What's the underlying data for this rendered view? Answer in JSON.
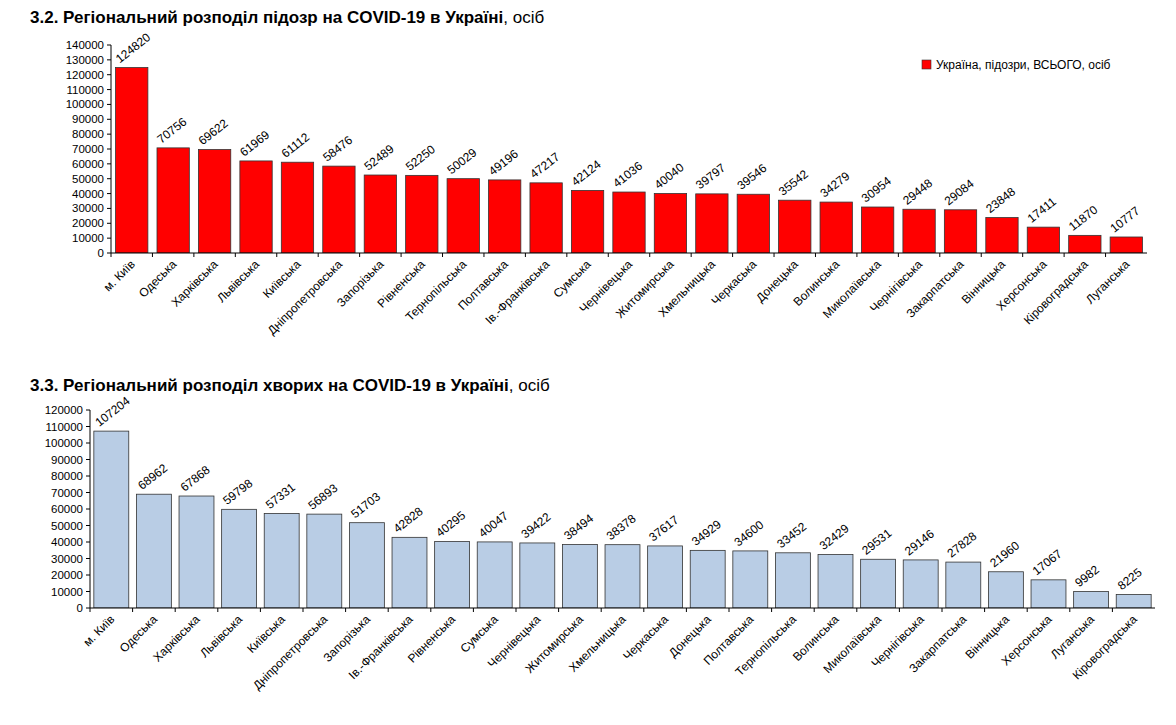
{
  "chart_data": [
    {
      "type": "bar",
      "title": "3.2.  Регіональний розподіл підозр на COVID-19 в Україні, осіб",
      "categories": [
        "м. Київ",
        "Одеська",
        "Харківська",
        "Львівська",
        "Київська",
        "Дніпропетровська",
        "Запорізька",
        "Рівненська",
        "Тернопільська",
        "Полтавська",
        "Ів.-Франківська",
        "Сумська",
        "Чернівецька",
        "Житомирська",
        "Хмельницька",
        "Черкаська",
        "Донецька",
        "Волинська",
        "Миколаївська",
        "Чернігівська",
        "Закарпатська",
        "Вінницька",
        "Херсонська",
        "Кіровоградська",
        "Луганська"
      ],
      "series": [
        {
          "name": "Україна, підозри, ВСЬОГО, осіб",
          "color": "#ff0000",
          "values": [
            124820,
            70756,
            69622,
            61969,
            61112,
            58476,
            52489,
            52250,
            50029,
            49196,
            47217,
            42124,
            41036,
            40040,
            39797,
            39546,
            35542,
            34279,
            30954,
            29448,
            29084,
            23848,
            17411,
            11870,
            10777
          ]
        }
      ],
      "ylim": [
        0,
        140000
      ],
      "yticks": [
        0,
        10000,
        20000,
        30000,
        40000,
        50000,
        60000,
        70000,
        80000,
        90000,
        100000,
        110000,
        120000,
        130000,
        140000
      ],
      "grid": false,
      "legend": "top-right",
      "data_labels": true
    },
    {
      "type": "bar",
      "title": "3.3.  Регіональний розподіл хворих на COVID-19 в Україні, осіб",
      "categories": [
        "м. Київ",
        "Одеська",
        "Харківська",
        "Львівська",
        "Київська",
        "Дніпропетровська",
        "Запорізька",
        "Ів.-Франківська",
        "Рівненська",
        "Сумська",
        "Чернівецька",
        "Житомирська",
        "Хмельницька",
        "Черкаська",
        "Донецька",
        "Полтавська",
        "Тернопільська",
        "Волинська",
        "Миколаївська",
        "Чернігівська",
        "Закарпатська",
        "Вінницька",
        "Херсонська",
        "Луганська",
        "Кіровоградська"
      ],
      "values": [
        107204,
        68962,
        67868,
        59798,
        57331,
        56893,
        51703,
        42828,
        40295,
        40047,
        39422,
        38494,
        38378,
        37617,
        34929,
        34600,
        33452,
        32429,
        29531,
        29146,
        27828,
        21960,
        17067,
        9982,
        8225
      ],
      "color": "#b9cde5",
      "ylim": [
        0,
        120000
      ],
      "yticks": [
        0,
        10000,
        20000,
        30000,
        40000,
        50000,
        60000,
        70000,
        80000,
        90000,
        100000,
        110000,
        120000
      ],
      "grid": false,
      "data_labels": true
    }
  ]
}
